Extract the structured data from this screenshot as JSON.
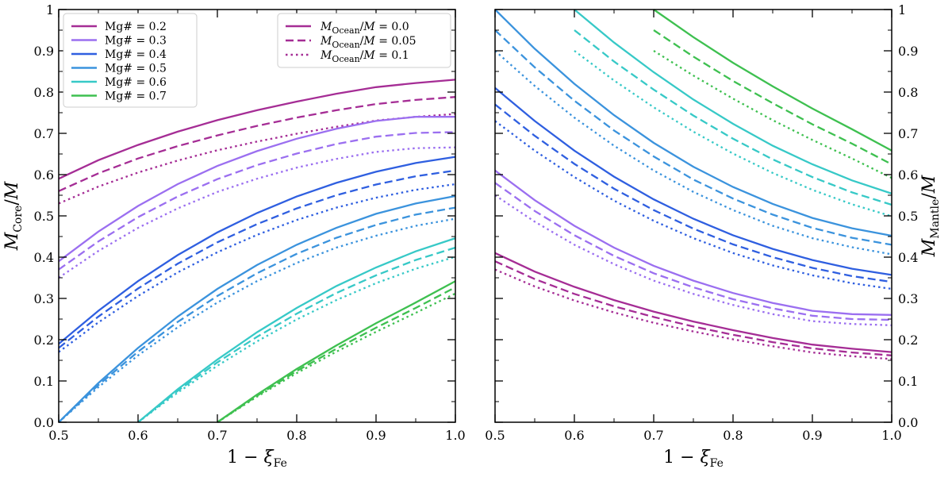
{
  "chart_data": [
    {
      "type": "line",
      "panel": "left",
      "xlabel": "1 − ξ_Fe",
      "ylabel": "M_Core/M",
      "xlim": [
        0.5,
        1.0
      ],
      "ylim": [
        0.0,
        1.0
      ],
      "xticks": [
        "0.5",
        "0.6",
        "0.7",
        "0.8",
        "0.9",
        "1.0"
      ],
      "yticks": [
        "0.0",
        "0.1",
        "0.2",
        "0.3",
        "0.4",
        "0.5",
        "0.6",
        "0.7",
        "0.8",
        "0.9",
        "1"
      ],
      "tick_side": "left",
      "x": [
        0.5,
        0.55,
        0.6,
        0.65,
        0.7,
        0.75,
        0.8,
        0.85,
        0.9,
        0.95,
        1.0
      ],
      "series": [
        {
          "name": "Mg# = 0.2, M_Ocean/M = 0.0",
          "mg": 0.2,
          "ocean": 0.0,
          "values": [
            0.59,
            0.635,
            0.672,
            0.704,
            0.732,
            0.756,
            0.777,
            0.796,
            0.812,
            0.822,
            0.83
          ]
        },
        {
          "name": "Mg# = 0.2, M_Ocean/M = 0.05",
          "mg": 0.2,
          "ocean": 0.05,
          "values": [
            0.56,
            0.603,
            0.639,
            0.669,
            0.695,
            0.718,
            0.738,
            0.756,
            0.771,
            0.781,
            0.788
          ]
        },
        {
          "name": "Mg# = 0.2, M_Ocean/M = 0.1",
          "mg": 0.2,
          "ocean": 0.1,
          "values": [
            0.53,
            0.571,
            0.605,
            0.634,
            0.659,
            0.68,
            0.699,
            0.716,
            0.731,
            0.74,
            0.747
          ]
        },
        {
          "name": "Mg# = 0.3, M_Ocean/M = 0.0",
          "mg": 0.3,
          "ocean": 0.0,
          "values": [
            0.39,
            0.462,
            0.524,
            0.577,
            0.621,
            0.657,
            0.687,
            0.711,
            0.73,
            0.74,
            0.74
          ]
        },
        {
          "name": "Mg# = 0.3, M_Ocean/M = 0.05",
          "mg": 0.3,
          "ocean": 0.05,
          "values": [
            0.37,
            0.438,
            0.497,
            0.547,
            0.589,
            0.623,
            0.651,
            0.674,
            0.692,
            0.701,
            0.703
          ]
        },
        {
          "name": "Mg# = 0.3, M_Ocean/M = 0.1",
          "mg": 0.3,
          "ocean": 0.1,
          "values": [
            0.35,
            0.415,
            0.471,
            0.518,
            0.558,
            0.59,
            0.617,
            0.638,
            0.655,
            0.664,
            0.666
          ]
        },
        {
          "name": "Mg# = 0.4, M_Ocean/M = 0.0",
          "mg": 0.4,
          "ocean": 0.0,
          "values": [
            0.19,
            0.27,
            0.342,
            0.405,
            0.46,
            0.507,
            0.547,
            0.58,
            0.607,
            0.628,
            0.643
          ]
        },
        {
          "name": "Mg# = 0.4, M_Ocean/M = 0.05",
          "mg": 0.4,
          "ocean": 0.05,
          "values": [
            0.18,
            0.256,
            0.324,
            0.384,
            0.436,
            0.48,
            0.518,
            0.55,
            0.576,
            0.596,
            0.61
          ]
        },
        {
          "name": "Mg# = 0.4, M_Ocean/M = 0.1",
          "mg": 0.4,
          "ocean": 0.1,
          "values": [
            0.17,
            0.242,
            0.306,
            0.363,
            0.412,
            0.454,
            0.49,
            0.52,
            0.544,
            0.563,
            0.577
          ]
        },
        {
          "name": "Mg# = 0.5, M_Ocean/M = 0.0",
          "mg": 0.5,
          "ocean": 0.0,
          "values": [
            0.0,
            0.095,
            0.18,
            0.256,
            0.323,
            0.381,
            0.43,
            0.471,
            0.505,
            0.53,
            0.548
          ]
        },
        {
          "name": "Mg# = 0.5, M_Ocean/M = 0.05",
          "mg": 0.5,
          "ocean": 0.05,
          "values": [
            0.0,
            0.09,
            0.171,
            0.243,
            0.306,
            0.361,
            0.408,
            0.447,
            0.478,
            0.503,
            0.52
          ]
        },
        {
          "name": "Mg# = 0.5, M_Ocean/M = 0.1",
          "mg": 0.5,
          "ocean": 0.1,
          "values": [
            0.0,
            0.085,
            0.162,
            0.23,
            0.29,
            0.342,
            0.386,
            0.423,
            0.452,
            0.476,
            0.493
          ]
        },
        {
          "name": "Mg# = 0.6, M_Ocean/M = 0.0",
          "mg": 0.6,
          "ocean": 0.0,
          "values": [
            null,
            null,
            0.0,
            0.08,
            0.152,
            0.218,
            0.277,
            0.33,
            0.375,
            0.414,
            0.446
          ]
        },
        {
          "name": "Mg# = 0.6, M_Ocean/M = 0.05",
          "mg": 0.6,
          "ocean": 0.05,
          "values": [
            null,
            null,
            0.0,
            0.076,
            0.145,
            0.207,
            0.263,
            0.313,
            0.356,
            0.393,
            0.423
          ]
        },
        {
          "name": "Mg# = 0.6, M_Ocean/M = 0.1",
          "mg": 0.6,
          "ocean": 0.1,
          "values": [
            null,
            null,
            0.0,
            0.072,
            0.137,
            0.196,
            0.249,
            0.296,
            0.337,
            0.372,
            0.401
          ]
        },
        {
          "name": "Mg# = 0.7, M_Ocean/M = 0.0",
          "mg": 0.7,
          "ocean": 0.0,
          "values": [
            null,
            null,
            null,
            null,
            0.0,
            0.067,
            0.129,
            0.186,
            0.24,
            0.29,
            0.342
          ]
        },
        {
          "name": "Mg# = 0.7, M_Ocean/M = 0.05",
          "mg": 0.7,
          "ocean": 0.05,
          "values": [
            null,
            null,
            null,
            null,
            0.0,
            0.064,
            0.124,
            0.178,
            0.229,
            0.277,
            0.327
          ]
        },
        {
          "name": "Mg# = 0.7, M_Ocean/M = 0.1",
          "mg": 0.7,
          "ocean": 0.1,
          "values": [
            null,
            null,
            null,
            null,
            0.0,
            0.062,
            0.119,
            0.171,
            0.219,
            0.265,
            0.312
          ]
        }
      ],
      "legends": [
        {
          "location": "upper-left",
          "entries": [
            {
              "label": "Mg# = 0.2",
              "color": "#a52d95",
              "dash": "solid"
            },
            {
              "label": "Mg# = 0.3",
              "color": "#9b6ff0",
              "dash": "solid"
            },
            {
              "label": "Mg# = 0.4",
              "color": "#2f5fe0",
              "dash": "solid"
            },
            {
              "label": "Mg# = 0.5",
              "color": "#3b93dd",
              "dash": "solid"
            },
            {
              "label": "Mg# = 0.6",
              "color": "#37c9c7",
              "dash": "solid"
            },
            {
              "label": "Mg# = 0.7",
              "color": "#3ec050",
              "dash": "solid"
            }
          ]
        },
        {
          "location": "upper-right",
          "entries": [
            {
              "label": "M_Ocean/M = 0.0",
              "color": "#a52d95",
              "dash": "solid"
            },
            {
              "label": "M_Ocean/M = 0.05",
              "color": "#a52d95",
              "dash": "dashed"
            },
            {
              "label": "M_Ocean/M = 0.1",
              "color": "#a52d95",
              "dash": "dotted"
            }
          ]
        }
      ]
    },
    {
      "type": "line",
      "panel": "right",
      "xlabel": "1 − ξ_Fe",
      "ylabel": "M_Mantle/M",
      "xlim": [
        0.5,
        1.0
      ],
      "ylim": [
        0.0,
        1.0
      ],
      "xticks": [
        "0.5",
        "0.6",
        "0.7",
        "0.8",
        "0.9",
        "1.0"
      ],
      "yticks": [
        "0.0",
        "0.1",
        "0.2",
        "0.3",
        "0.4",
        "0.5",
        "0.6",
        "0.7",
        "0.8",
        "0.9",
        "1"
      ],
      "tick_side": "right",
      "x": [
        0.5,
        0.55,
        0.6,
        0.65,
        0.7,
        0.75,
        0.8,
        0.85,
        0.9,
        0.95,
        1.0
      ],
      "series": [
        {
          "name": "Mg# = 0.2, M_Ocean/M = 0.0",
          "mg": 0.2,
          "ocean": 0.0,
          "values": [
            0.41,
            0.365,
            0.328,
            0.296,
            0.268,
            0.244,
            0.223,
            0.204,
            0.188,
            0.178,
            0.17
          ]
        },
        {
          "name": "Mg# = 0.2, M_Ocean/M = 0.05",
          "mg": 0.2,
          "ocean": 0.05,
          "values": [
            0.39,
            0.347,
            0.311,
            0.281,
            0.255,
            0.232,
            0.212,
            0.194,
            0.179,
            0.169,
            0.162
          ]
        },
        {
          "name": "Mg# = 0.2, M_Ocean/M = 0.1",
          "mg": 0.2,
          "ocean": 0.1,
          "values": [
            0.37,
            0.329,
            0.295,
            0.266,
            0.241,
            0.22,
            0.201,
            0.184,
            0.169,
            0.16,
            0.153
          ]
        },
        {
          "name": "Mg# = 0.3, M_Ocean/M = 0.0",
          "mg": 0.3,
          "ocean": 0.0,
          "values": [
            0.61,
            0.538,
            0.476,
            0.423,
            0.379,
            0.343,
            0.313,
            0.289,
            0.27,
            0.262,
            0.26
          ]
        },
        {
          "name": "Mg# = 0.3, M_Ocean/M = 0.05",
          "mg": 0.3,
          "ocean": 0.05,
          "values": [
            0.58,
            0.512,
            0.453,
            0.403,
            0.361,
            0.327,
            0.298,
            0.276,
            0.258,
            0.25,
            0.248
          ]
        },
        {
          "name": "Mg# = 0.3, M_Ocean/M = 0.1",
          "mg": 0.3,
          "ocean": 0.1,
          "values": [
            0.55,
            0.486,
            0.43,
            0.383,
            0.343,
            0.311,
            0.284,
            0.262,
            0.245,
            0.238,
            0.235
          ]
        },
        {
          "name": "Mg# = 0.4, M_Ocean/M = 0.0",
          "mg": 0.4,
          "ocean": 0.0,
          "values": [
            0.81,
            0.73,
            0.658,
            0.595,
            0.54,
            0.493,
            0.453,
            0.42,
            0.393,
            0.372,
            0.357
          ]
        },
        {
          "name": "Mg# = 0.4, M_Ocean/M = 0.05",
          "mg": 0.4,
          "ocean": 0.05,
          "values": [
            0.77,
            0.694,
            0.626,
            0.566,
            0.514,
            0.469,
            0.431,
            0.4,
            0.374,
            0.354,
            0.34
          ]
        },
        {
          "name": "Mg# = 0.4, M_Ocean/M = 0.1",
          "mg": 0.4,
          "ocean": 0.1,
          "values": [
            0.73,
            0.658,
            0.594,
            0.537,
            0.488,
            0.446,
            0.41,
            0.38,
            0.356,
            0.337,
            0.323
          ]
        },
        {
          "name": "Mg# = 0.5, M_Ocean/M = 0.0",
          "mg": 0.5,
          "ocean": 0.0,
          "values": [
            1.0,
            0.905,
            0.82,
            0.744,
            0.677,
            0.619,
            0.57,
            0.529,
            0.495,
            0.47,
            0.452
          ]
        },
        {
          "name": "Mg# = 0.5, M_Ocean/M = 0.05",
          "mg": 0.5,
          "ocean": 0.05,
          "values": [
            0.95,
            0.86,
            0.779,
            0.707,
            0.644,
            0.588,
            0.542,
            0.503,
            0.471,
            0.447,
            0.43
          ]
        },
        {
          "name": "Mg# = 0.5, M_Ocean/M = 0.1",
          "mg": 0.5,
          "ocean": 0.1,
          "values": [
            0.9,
            0.815,
            0.738,
            0.67,
            0.61,
            0.558,
            0.514,
            0.476,
            0.446,
            0.424,
            0.407
          ]
        },
        {
          "name": "Mg# = 0.6, M_Ocean/M = 0.0",
          "mg": 0.6,
          "ocean": 0.0,
          "values": [
            null,
            null,
            1.0,
            0.92,
            0.848,
            0.782,
            0.723,
            0.67,
            0.625,
            0.586,
            0.554
          ]
        },
        {
          "name": "Mg# = 0.6, M_Ocean/M = 0.05",
          "mg": 0.6,
          "ocean": 0.05,
          "values": [
            null,
            null,
            0.95,
            0.874,
            0.806,
            0.743,
            0.687,
            0.637,
            0.594,
            0.557,
            0.527
          ]
        },
        {
          "name": "Mg# = 0.6, M_Ocean/M = 0.1",
          "mg": 0.6,
          "ocean": 0.1,
          "values": [
            null,
            null,
            0.9,
            0.828,
            0.763,
            0.704,
            0.651,
            0.604,
            0.563,
            0.528,
            0.499
          ]
        },
        {
          "name": "Mg# = 0.7, M_Ocean/M = 0.0",
          "mg": 0.7,
          "ocean": 0.0,
          "values": [
            null,
            null,
            null,
            null,
            1.0,
            0.933,
            0.871,
            0.814,
            0.76,
            0.71,
            0.658
          ]
        },
        {
          "name": "Mg# = 0.7, M_Ocean/M = 0.05",
          "mg": 0.7,
          "ocean": 0.05,
          "values": [
            null,
            null,
            null,
            null,
            0.95,
            0.886,
            0.827,
            0.773,
            0.722,
            0.675,
            0.625
          ]
        },
        {
          "name": "Mg# = 0.7, M_Ocean/M = 0.1",
          "mg": 0.7,
          "ocean": 0.1,
          "values": [
            null,
            null,
            null,
            null,
            0.9,
            0.84,
            0.784,
            0.732,
            0.684,
            0.639,
            0.592
          ]
        }
      ]
    }
  ],
  "colors": {
    "0.2": "#a52d95",
    "0.3": "#9b6ff0",
    "0.4": "#2f5fe0",
    "0.5": "#3b93dd",
    "0.6": "#37c9c7",
    "0.7": "#3ec050"
  },
  "dash_styles": {
    "0": "solid",
    "0.05": "dashed",
    "0.1": "dotted"
  }
}
